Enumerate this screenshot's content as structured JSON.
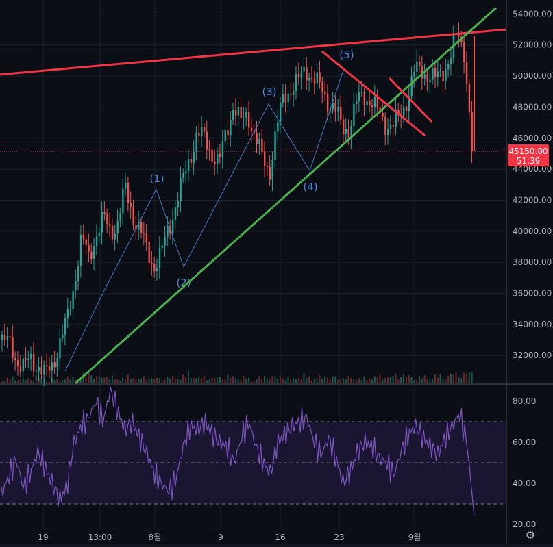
{
  "chart_data": [
    {
      "type": "candlestick",
      "price_axis": {
        "ticks": [
          "54000.00",
          "52000.00",
          "50000.00",
          "48000.00",
          "46000.00",
          "44000.00",
          "42000.00",
          "40000.00",
          "38000.00",
          "36000.00",
          "34000.00",
          "32000.00"
        ],
        "ylim": [
          30200,
          54900
        ]
      },
      "time_axis": {
        "ticks": [
          "19",
          "13:00",
          "8월",
          "9",
          "16",
          "23",
          "9월"
        ]
      },
      "last_price": {
        "price": "45150.00",
        "countdown": "51:39",
        "value": 45150,
        "color": "#f23645"
      },
      "waves": [
        {
          "label": "(1)",
          "value": 42700
        },
        {
          "label": "(2)",
          "value": 37700
        },
        {
          "label": "(3)",
          "value": 48200
        },
        {
          "label": "(4)",
          "value": 43900
        },
        {
          "label": "(5)",
          "value": 50500
        }
      ],
      "trendlines": [
        {
          "name": "upper",
          "color": "#f23645",
          "from": 50100,
          "to": 53000
        },
        {
          "name": "support",
          "color": "#4caf50",
          "from": 30200,
          "to": 54400
        }
      ],
      "price_path": [
        33000,
        32700,
        31800,
        31200,
        31700,
        31400,
        30600,
        31500,
        32900,
        34200,
        36800,
        39600,
        38200,
        39900,
        40800,
        40000,
        40600,
        42700,
        41200,
        40100,
        38800,
        37800,
        38500,
        40200,
        41700,
        43200,
        44900,
        46300,
        45900,
        45100,
        44300,
        46400,
        48200,
        46900,
        47600,
        46100,
        44600,
        43900,
        46700,
        48700,
        49300,
        49600,
        50500,
        49900,
        49200,
        48500,
        47900,
        46600,
        46700,
        48200,
        48800,
        48400,
        47600,
        47000,
        46800,
        47300,
        48600,
        50200,
        50400,
        50100,
        49700,
        50400,
        51200,
        52700,
        51600,
        45150
      ],
      "volume_path": [
        0.3,
        0.4,
        0.5,
        0.3,
        0.4,
        0.5,
        0.3,
        0.3,
        0.4,
        0.4,
        0.5,
        0.6,
        0.9,
        0.5,
        0.6,
        0.5,
        0.4,
        0.5,
        0.5,
        0.4,
        0.5,
        0.4,
        0.4,
        0.5,
        0.5,
        0.6,
        0.8,
        0.5,
        0.5,
        0.4,
        0.5,
        0.6,
        0.5,
        0.5,
        0.4,
        0.4,
        0.5,
        0.6,
        0.5,
        0.5,
        0.4,
        0.5,
        0.6,
        0.5,
        0.5,
        0.6,
        0.5,
        0.4,
        0.5,
        0.4,
        0.4,
        0.5,
        0.6,
        0.5,
        0.6,
        0.7,
        0.6,
        0.5,
        0.5,
        0.5,
        0.6,
        0.6,
        0.7,
        0.8,
        0.7,
        1.0
      ]
    },
    {
      "type": "line",
      "name": "RSI",
      "ticks": [
        "80.00",
        "60.00",
        "40.00",
        "20.00"
      ],
      "ylim": [
        18,
        88
      ],
      "bands": [
        30,
        50,
        70
      ],
      "values": [
        35,
        43,
        52,
        38,
        45,
        55,
        48,
        40,
        32,
        38,
        60,
        68,
        72,
        80,
        70,
        86,
        75,
        66,
        70,
        62,
        55,
        45,
        40,
        36,
        42,
        58,
        68,
        66,
        70,
        64,
        60,
        58,
        50,
        62,
        70,
        58,
        50,
        45,
        60,
        64,
        68,
        70,
        72,
        60,
        54,
        62,
        52,
        40,
        46,
        56,
        60,
        58,
        52,
        50,
        44,
        56,
        64,
        68,
        62,
        58,
        54,
        62,
        68,
        74,
        60,
        24
      ]
    }
  ]
}
